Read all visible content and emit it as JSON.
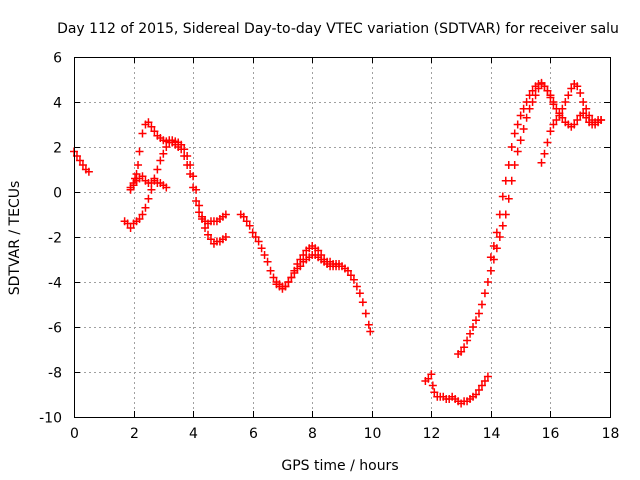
{
  "chart_data": {
    "type": "scatter",
    "title": "Day 112 of 2015, Sidereal Day-to-day VTEC variation (SDTVAR) for receiver salu",
    "xlabel": "GPS time / hours",
    "ylabel": "SDTVAR / TECUs",
    "xlim": [
      0,
      18
    ],
    "ylim": [
      -10,
      6
    ],
    "xticks": [
      0,
      2,
      4,
      6,
      8,
      10,
      12,
      14,
      16,
      18
    ],
    "yticks": [
      -10,
      -8,
      -6,
      -4,
      -2,
      0,
      2,
      4,
      6
    ],
    "grid": true,
    "marker": "+",
    "color": "#ff0000",
    "series": [
      {
        "name": "seg1",
        "points": [
          [
            0.0,
            1.8
          ],
          [
            0.1,
            1.6
          ],
          [
            0.2,
            1.4
          ],
          [
            0.3,
            1.2
          ],
          [
            0.4,
            1.0
          ],
          [
            0.5,
            0.9
          ]
        ]
      },
      {
        "name": "seg2",
        "points": [
          [
            1.7,
            -1.3
          ],
          [
            1.8,
            -1.4
          ],
          [
            1.9,
            -1.6
          ],
          [
            2.0,
            -1.4
          ],
          [
            2.1,
            -1.3
          ],
          [
            2.2,
            -1.2
          ],
          [
            2.3,
            -1.0
          ],
          [
            2.4,
            -0.7
          ],
          [
            2.5,
            -0.3
          ],
          [
            2.6,
            0.1
          ],
          [
            2.7,
            0.6
          ],
          [
            2.8,
            1.0
          ],
          [
            2.9,
            1.4
          ],
          [
            3.0,
            1.7
          ],
          [
            3.1,
            2.0
          ],
          [
            3.2,
            2.2
          ],
          [
            3.3,
            2.3
          ],
          [
            3.4,
            2.25
          ],
          [
            3.5,
            2.2
          ],
          [
            3.6,
            2.1
          ],
          [
            3.7,
            1.9
          ],
          [
            3.8,
            1.6
          ],
          [
            3.9,
            1.2
          ],
          [
            4.0,
            0.7
          ],
          [
            4.1,
            0.1
          ],
          [
            4.2,
            -0.6
          ],
          [
            4.3,
            -1.2
          ],
          [
            4.4,
            -1.6
          ],
          [
            4.5,
            -1.9
          ],
          [
            4.6,
            -2.1
          ],
          [
            4.7,
            -2.3
          ],
          [
            4.8,
            -2.2
          ],
          [
            4.9,
            -2.2
          ],
          [
            5.0,
            -2.1
          ],
          [
            5.1,
            -2.0
          ]
        ]
      },
      {
        "name": "seg3",
        "points": [
          [
            1.9,
            0.2
          ],
          [
            2.0,
            0.4
          ],
          [
            2.05,
            0.6
          ],
          [
            2.1,
            0.8
          ],
          [
            2.15,
            1.2
          ],
          [
            2.2,
            1.8
          ],
          [
            2.3,
            2.6
          ],
          [
            2.4,
            3.0
          ],
          [
            2.5,
            3.1
          ],
          [
            2.6,
            2.9
          ],
          [
            2.7,
            2.7
          ],
          [
            2.8,
            2.5
          ],
          [
            2.9,
            2.4
          ],
          [
            3.0,
            2.3
          ],
          [
            3.1,
            2.25
          ],
          [
            3.2,
            2.3
          ],
          [
            3.3,
            2.2
          ],
          [
            3.4,
            2.1
          ],
          [
            3.5,
            2.0
          ],
          [
            3.6,
            1.9
          ],
          [
            3.7,
            1.6
          ],
          [
            3.8,
            1.2
          ],
          [
            3.9,
            0.8
          ],
          [
            4.0,
            0.2
          ],
          [
            4.1,
            -0.4
          ],
          [
            4.2,
            -0.9
          ],
          [
            4.3,
            -1.1
          ],
          [
            4.4,
            -1.3
          ],
          [
            4.5,
            -1.4
          ],
          [
            4.6,
            -1.3
          ],
          [
            4.7,
            -1.3
          ],
          [
            4.8,
            -1.3
          ],
          [
            4.9,
            -1.2
          ],
          [
            5.0,
            -1.1
          ],
          [
            5.1,
            -1.0
          ]
        ]
      },
      {
        "name": "seg4",
        "points": [
          [
            1.9,
            0.1
          ],
          [
            2.0,
            0.3
          ],
          [
            2.1,
            0.5
          ],
          [
            2.2,
            0.6
          ],
          [
            2.3,
            0.7
          ],
          [
            2.4,
            0.5
          ],
          [
            2.5,
            0.4
          ],
          [
            2.6,
            0.4
          ],
          [
            2.7,
            0.5
          ],
          [
            2.8,
            0.4
          ],
          [
            2.9,
            0.4
          ],
          [
            3.0,
            0.3
          ],
          [
            3.1,
            0.2
          ]
        ]
      },
      {
        "name": "seg5",
        "points": [
          [
            5.6,
            -1.0
          ],
          [
            5.7,
            -1.1
          ],
          [
            5.8,
            -1.3
          ],
          [
            5.9,
            -1.5
          ],
          [
            6.0,
            -1.8
          ],
          [
            6.1,
            -2.0
          ],
          [
            6.2,
            -2.2
          ],
          [
            6.3,
            -2.5
          ],
          [
            6.4,
            -2.8
          ],
          [
            6.5,
            -3.1
          ],
          [
            6.6,
            -3.5
          ],
          [
            6.7,
            -3.8
          ],
          [
            6.8,
            -4.0
          ],
          [
            6.9,
            -4.1
          ],
          [
            7.0,
            -4.2
          ],
          [
            7.1,
            -4.2
          ],
          [
            7.2,
            -4.0
          ],
          [
            7.3,
            -3.8
          ],
          [
            7.4,
            -3.5
          ],
          [
            7.5,
            -3.2
          ],
          [
            7.6,
            -3.0
          ],
          [
            7.7,
            -2.8
          ],
          [
            7.8,
            -2.6
          ],
          [
            7.9,
            -2.5
          ],
          [
            8.0,
            -2.4
          ],
          [
            8.1,
            -2.5
          ],
          [
            8.2,
            -2.6
          ],
          [
            8.3,
            -2.8
          ],
          [
            8.4,
            -3.0
          ],
          [
            8.5,
            -3.1
          ],
          [
            8.6,
            -3.1
          ],
          [
            8.7,
            -3.2
          ],
          [
            8.8,
            -3.2
          ],
          [
            8.9,
            -3.2
          ],
          [
            9.0,
            -3.3
          ],
          [
            9.1,
            -3.4
          ],
          [
            9.2,
            -3.5
          ],
          [
            9.3,
            -3.7
          ],
          [
            9.4,
            -3.9
          ],
          [
            9.5,
            -4.2
          ],
          [
            9.6,
            -4.5
          ],
          [
            9.7,
            -4.9
          ],
          [
            9.8,
            -5.4
          ],
          [
            9.9,
            -5.9
          ],
          [
            9.95,
            -6.2
          ]
        ]
      },
      {
        "name": "seg6",
        "points": [
          [
            6.8,
            -4.1
          ],
          [
            6.9,
            -4.2
          ],
          [
            7.0,
            -4.3
          ],
          [
            7.1,
            -4.2
          ],
          [
            7.2,
            -4.0
          ],
          [
            7.3,
            -3.8
          ],
          [
            7.4,
            -3.6
          ],
          [
            7.5,
            -3.4
          ],
          [
            7.6,
            -3.3
          ],
          [
            7.7,
            -3.1
          ],
          [
            7.8,
            -3.0
          ],
          [
            7.9,
            -2.9
          ],
          [
            8.0,
            -2.8
          ],
          [
            8.1,
            -2.8
          ],
          [
            8.2,
            -2.9
          ],
          [
            8.3,
            -3.0
          ],
          [
            8.4,
            -3.1
          ],
          [
            8.5,
            -3.2
          ],
          [
            8.6,
            -3.3
          ],
          [
            8.7,
            -3.3
          ],
          [
            8.8,
            -3.3
          ],
          [
            8.9,
            -3.3
          ]
        ]
      },
      {
        "name": "seg7",
        "points": [
          [
            11.8,
            -8.4
          ],
          [
            11.9,
            -8.3
          ],
          [
            12.0,
            -8.1
          ],
          [
            12.05,
            -8.6
          ],
          [
            12.1,
            -8.9
          ],
          [
            12.2,
            -9.1
          ],
          [
            12.3,
            -9.1
          ],
          [
            12.4,
            -9.1
          ],
          [
            12.5,
            -9.2
          ],
          [
            12.6,
            -9.2
          ],
          [
            12.7,
            -9.1
          ],
          [
            12.8,
            -9.2
          ],
          [
            12.9,
            -9.3
          ],
          [
            13.0,
            -9.4
          ],
          [
            13.1,
            -9.3
          ],
          [
            13.2,
            -9.3
          ],
          [
            13.3,
            -9.2
          ],
          [
            13.4,
            -9.1
          ],
          [
            13.5,
            -9.0
          ],
          [
            13.6,
            -8.8
          ],
          [
            13.7,
            -8.6
          ],
          [
            13.8,
            -8.4
          ],
          [
            13.9,
            -8.2
          ]
        ]
      },
      {
        "name": "seg8",
        "points": [
          [
            12.9,
            -7.2
          ],
          [
            13.0,
            -7.1
          ],
          [
            13.1,
            -6.9
          ],
          [
            13.2,
            -6.6
          ],
          [
            13.3,
            -6.3
          ],
          [
            13.4,
            -6.0
          ],
          [
            13.5,
            -5.7
          ],
          [
            13.6,
            -5.4
          ],
          [
            13.7,
            -5.0
          ],
          [
            13.8,
            -4.5
          ],
          [
            13.9,
            -4.0
          ],
          [
            14.0,
            -3.5
          ],
          [
            14.1,
            -3.0
          ],
          [
            14.2,
            -2.5
          ],
          [
            14.3,
            -2.0
          ],
          [
            14.4,
            -1.5
          ],
          [
            14.5,
            -1.0
          ],
          [
            14.6,
            -0.3
          ],
          [
            14.7,
            0.5
          ],
          [
            14.8,
            1.2
          ],
          [
            14.9,
            1.8
          ],
          [
            15.0,
            2.3
          ],
          [
            15.1,
            2.8
          ],
          [
            15.2,
            3.3
          ],
          [
            15.3,
            3.7
          ],
          [
            15.4,
            4.0
          ],
          [
            15.5,
            4.3
          ],
          [
            15.6,
            4.6
          ],
          [
            15.7,
            4.8
          ],
          [
            15.8,
            4.7
          ],
          [
            15.9,
            4.5
          ],
          [
            16.0,
            4.2
          ],
          [
            16.1,
            3.9
          ],
          [
            16.2,
            3.7
          ],
          [
            16.3,
            3.5
          ],
          [
            16.4,
            3.3
          ],
          [
            16.5,
            3.1
          ],
          [
            16.6,
            3.0
          ],
          [
            16.7,
            2.9
          ],
          [
            16.8,
            3.0
          ],
          [
            16.9,
            3.2
          ],
          [
            17.0,
            3.4
          ],
          [
            17.1,
            3.5
          ],
          [
            17.2,
            3.3
          ],
          [
            17.3,
            3.1
          ],
          [
            17.4,
            3.0
          ],
          [
            17.5,
            3.1
          ],
          [
            17.6,
            3.2
          ],
          [
            17.7,
            3.2
          ]
        ]
      },
      {
        "name": "seg9",
        "points": [
          [
            14.0,
            -2.9
          ],
          [
            14.1,
            -2.4
          ],
          [
            14.2,
            -1.8
          ],
          [
            14.3,
            -1.0
          ],
          [
            14.4,
            -0.2
          ],
          [
            14.5,
            0.5
          ],
          [
            14.6,
            1.2
          ],
          [
            14.7,
            2.0
          ],
          [
            14.8,
            2.6
          ],
          [
            14.9,
            3.0
          ],
          [
            15.0,
            3.4
          ],
          [
            15.1,
            3.7
          ],
          [
            15.2,
            4.0
          ],
          [
            15.3,
            4.3
          ],
          [
            15.4,
            4.5
          ],
          [
            15.5,
            4.7
          ],
          [
            15.6,
            4.8
          ],
          [
            15.7,
            4.85
          ],
          [
            15.8,
            4.7
          ],
          [
            15.9,
            4.5
          ],
          [
            16.0,
            4.3
          ],
          [
            16.1,
            4.0
          ]
        ]
      },
      {
        "name": "seg10",
        "points": [
          [
            15.7,
            1.3
          ],
          [
            15.8,
            1.7
          ],
          [
            15.9,
            2.2
          ],
          [
            16.0,
            2.7
          ],
          [
            16.1,
            3.0
          ],
          [
            16.2,
            3.2
          ],
          [
            16.3,
            3.4
          ],
          [
            16.4,
            3.7
          ],
          [
            16.5,
            4.0
          ],
          [
            16.6,
            4.3
          ],
          [
            16.7,
            4.6
          ],
          [
            16.8,
            4.8
          ],
          [
            16.9,
            4.7
          ],
          [
            17.0,
            4.4
          ],
          [
            17.1,
            4.0
          ],
          [
            17.2,
            3.7
          ],
          [
            17.3,
            3.4
          ],
          [
            17.4,
            3.2
          ],
          [
            17.5,
            3.0
          ],
          [
            17.6,
            3.1
          ],
          [
            17.7,
            3.2
          ]
        ]
      }
    ]
  }
}
